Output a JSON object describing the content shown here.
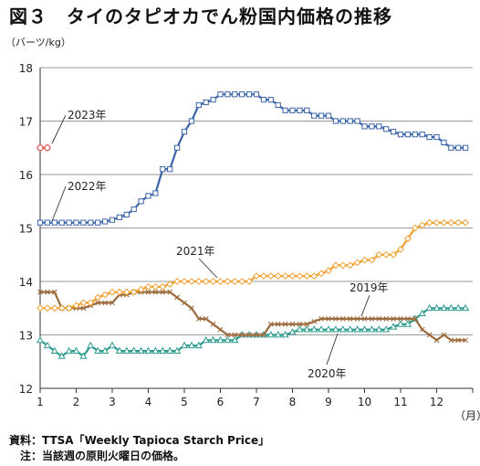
{
  "title": "図３　タイのタピオカでん粉国内価格の推移",
  "y_unit": "（バーツ/kg）",
  "x_unit": "（月）",
  "notes": {
    "source": "資料：TTSA「Weekly Tapioca Starch Price」",
    "note": "　注：当該週の原則火曜日の価格。"
  },
  "chart_data": {
    "type": "line",
    "xlabel": "",
    "ylabel": "（バーツ/kg）",
    "x_ticks": [
      "1",
      "2",
      "3",
      "4",
      "5",
      "6",
      "7",
      "8",
      "9",
      "10",
      "11",
      "12"
    ],
    "xlim": [
      1,
      13
    ],
    "ylim": [
      12,
      18
    ],
    "y_ticks": [
      12,
      13,
      14,
      15,
      16,
      17,
      18
    ],
    "grid": "horizontal",
    "series": [
      {
        "name": "2023年",
        "color": "#e0504a",
        "marker": "circle",
        "x": [
          1.0,
          1.2
        ],
        "y": [
          16.5,
          16.5
        ]
      },
      {
        "name": "2022年",
        "color": "#3a63a8",
        "marker": "square",
        "x": [
          1.0,
          1.2,
          1.4,
          1.6,
          1.8,
          2.0,
          2.2,
          2.4,
          2.6,
          2.8,
          3.0,
          3.2,
          3.4,
          3.6,
          3.8,
          4.0,
          4.2,
          4.4,
          4.6,
          4.8,
          5.0,
          5.2,
          5.4,
          5.6,
          5.8,
          6.0,
          6.2,
          6.4,
          6.6,
          6.8,
          7.0,
          7.2,
          7.4,
          7.6,
          7.8,
          8.0,
          8.2,
          8.4,
          8.6,
          8.8,
          9.0,
          9.2,
          9.4,
          9.6,
          9.8,
          10.0,
          10.2,
          10.4,
          10.6,
          10.8,
          11.0,
          11.2,
          11.4,
          11.6,
          11.8,
          12.0,
          12.2,
          12.4,
          12.6,
          12.8
        ],
        "y": [
          15.1,
          15.1,
          15.1,
          15.1,
          15.1,
          15.1,
          15.1,
          15.1,
          15.1,
          15.12,
          15.15,
          15.2,
          15.25,
          15.35,
          15.5,
          15.6,
          15.65,
          16.1,
          16.1,
          16.5,
          16.8,
          17.0,
          17.3,
          17.35,
          17.4,
          17.5,
          17.5,
          17.5,
          17.5,
          17.5,
          17.5,
          17.4,
          17.4,
          17.3,
          17.2,
          17.2,
          17.2,
          17.2,
          17.1,
          17.1,
          17.1,
          17.0,
          17.0,
          17.0,
          17.0,
          16.9,
          16.9,
          16.9,
          16.85,
          16.8,
          16.75,
          16.75,
          16.75,
          16.75,
          16.7,
          16.7,
          16.6,
          16.5,
          16.5,
          16.5
        ]
      },
      {
        "name": "2021年",
        "color": "#f0a030",
        "marker": "diamond",
        "x": [
          1.0,
          1.2,
          1.4,
          1.6,
          1.8,
          2.0,
          2.2,
          2.4,
          2.6,
          2.8,
          3.0,
          3.2,
          3.4,
          3.6,
          3.8,
          4.0,
          4.2,
          4.4,
          4.6,
          4.8,
          5.0,
          5.2,
          5.4,
          5.6,
          5.8,
          6.0,
          6.2,
          6.4,
          6.6,
          6.8,
          7.0,
          7.2,
          7.4,
          7.6,
          7.8,
          8.0,
          8.2,
          8.4,
          8.6,
          8.8,
          9.0,
          9.2,
          9.4,
          9.6,
          9.8,
          10.0,
          10.2,
          10.4,
          10.6,
          10.8,
          11.0,
          11.2,
          11.4,
          11.6,
          11.8,
          12.0,
          12.2,
          12.4,
          12.6,
          12.8
        ],
        "y": [
          13.5,
          13.5,
          13.5,
          13.5,
          13.5,
          13.55,
          13.6,
          13.6,
          13.7,
          13.75,
          13.8,
          13.8,
          13.8,
          13.8,
          13.85,
          13.9,
          13.9,
          13.9,
          13.95,
          14.0,
          14.0,
          14.0,
          14.0,
          14.0,
          14.0,
          14.0,
          14.0,
          14.0,
          14.0,
          14.0,
          14.1,
          14.1,
          14.1,
          14.1,
          14.1,
          14.1,
          14.1,
          14.1,
          14.1,
          14.15,
          14.2,
          14.3,
          14.3,
          14.3,
          14.35,
          14.4,
          14.4,
          14.5,
          14.5,
          14.5,
          14.6,
          14.8,
          15.0,
          15.05,
          15.1,
          15.1,
          15.1,
          15.1,
          15.1,
          15.1
        ]
      },
      {
        "name": "2019年",
        "color": "#9c6a3c",
        "marker": "x",
        "x": [
          1.0,
          1.2,
          1.4,
          1.6,
          1.8,
          2.0,
          2.2,
          2.4,
          2.6,
          2.8,
          3.0,
          3.2,
          3.4,
          3.6,
          3.8,
          4.0,
          4.2,
          4.4,
          4.6,
          4.8,
          5.0,
          5.2,
          5.4,
          5.6,
          5.8,
          6.0,
          6.2,
          6.4,
          6.6,
          6.8,
          7.0,
          7.2,
          7.4,
          7.6,
          7.8,
          8.0,
          8.2,
          8.4,
          8.6,
          8.8,
          9.0,
          9.2,
          9.4,
          9.6,
          9.8,
          10.0,
          10.2,
          10.4,
          10.6,
          10.8,
          11.0,
          11.2,
          11.4,
          11.6,
          11.8,
          12.0,
          12.2,
          12.4,
          12.6,
          12.8
        ],
        "y": [
          13.8,
          13.8,
          13.8,
          13.5,
          13.5,
          13.5,
          13.5,
          13.55,
          13.6,
          13.6,
          13.6,
          13.75,
          13.75,
          13.8,
          13.8,
          13.8,
          13.8,
          13.8,
          13.8,
          13.7,
          13.6,
          13.5,
          13.3,
          13.3,
          13.2,
          13.1,
          13.0,
          13.0,
          13.0,
          13.0,
          13.0,
          13.0,
          13.2,
          13.2,
          13.2,
          13.2,
          13.2,
          13.2,
          13.25,
          13.3,
          13.3,
          13.3,
          13.3,
          13.3,
          13.3,
          13.3,
          13.3,
          13.3,
          13.3,
          13.3,
          13.3,
          13.3,
          13.3,
          13.1,
          13.0,
          12.9,
          13.0,
          12.9,
          12.9,
          12.9
        ]
      },
      {
        "name": "2020年",
        "color": "#2a9a8e",
        "marker": "triangle",
        "x": [
          1.0,
          1.2,
          1.4,
          1.6,
          1.8,
          2.0,
          2.2,
          2.4,
          2.6,
          2.8,
          3.0,
          3.2,
          3.4,
          3.6,
          3.8,
          4.0,
          4.2,
          4.4,
          4.6,
          4.8,
          5.0,
          5.2,
          5.4,
          5.6,
          5.8,
          6.0,
          6.2,
          6.4,
          6.6,
          6.8,
          7.0,
          7.2,
          7.4,
          7.6,
          7.8,
          8.0,
          8.2,
          8.4,
          8.6,
          8.8,
          9.0,
          9.2,
          9.4,
          9.6,
          9.8,
          10.0,
          10.2,
          10.4,
          10.6,
          10.8,
          11.0,
          11.2,
          11.4,
          11.6,
          11.8,
          12.0,
          12.2,
          12.4,
          12.6,
          12.8
        ],
        "y": [
          12.9,
          12.8,
          12.7,
          12.6,
          12.7,
          12.7,
          12.6,
          12.8,
          12.7,
          12.7,
          12.8,
          12.7,
          12.7,
          12.7,
          12.7,
          12.7,
          12.7,
          12.7,
          12.7,
          12.7,
          12.8,
          12.8,
          12.8,
          12.9,
          12.9,
          12.9,
          12.9,
          12.9,
          13.0,
          13.0,
          13.0,
          13.0,
          13.0,
          13.0,
          13.0,
          13.05,
          13.1,
          13.1,
          13.1,
          13.1,
          13.1,
          13.1,
          13.1,
          13.1,
          13.1,
          13.1,
          13.1,
          13.1,
          13.1,
          13.15,
          13.2,
          13.2,
          13.3,
          13.4,
          13.5,
          13.5,
          13.5,
          13.5,
          13.5,
          13.5
        ]
      }
    ],
    "annotations": [
      {
        "text": "2023年",
        "series": "2023年"
      },
      {
        "text": "2022年",
        "series": "2022年"
      },
      {
        "text": "2021年",
        "series": "2021年"
      },
      {
        "text": "2019年",
        "series": "2019年"
      },
      {
        "text": "2020年",
        "series": "2020年"
      }
    ]
  }
}
